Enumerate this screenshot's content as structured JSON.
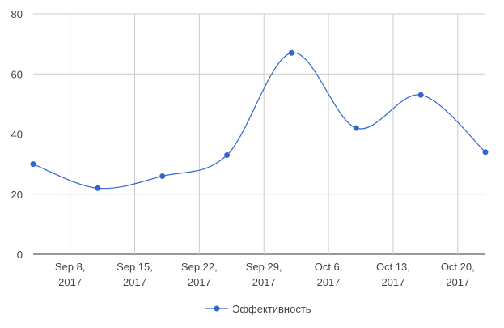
{
  "chart_data": {
    "type": "line",
    "x": [
      "2017-09-04",
      "2017-09-11",
      "2017-09-18",
      "2017-09-25",
      "2017-10-02",
      "2017-10-09",
      "2017-10-16",
      "2017-10-23"
    ],
    "series": [
      {
        "name": "Эффективность",
        "color": "#3366cc",
        "values": [
          30,
          22,
          26,
          33,
          67,
          42,
          53,
          34
        ]
      }
    ],
    "xlim": [
      "2017-09-04",
      "2017-10-23"
    ],
    "xticks": [
      {
        "value": "2017-09-08",
        "label": "Sep 8, 2017"
      },
      {
        "value": "2017-09-15",
        "label": "Sep 15, 2017"
      },
      {
        "value": "2017-09-22",
        "label": "Sep 22, 2017"
      },
      {
        "value": "2017-09-29",
        "label": "Sep 29, 2017"
      },
      {
        "value": "2017-10-06",
        "label": "Oct 6, 2017"
      },
      {
        "value": "2017-10-13",
        "label": "Oct 13, 2017"
      },
      {
        "value": "2017-10-20",
        "label": "Oct 20, 2017"
      }
    ],
    "ylim": [
      0,
      80
    ],
    "yticks": [
      0,
      20,
      40,
      60,
      80
    ],
    "grid": true,
    "legend": "bottom"
  }
}
